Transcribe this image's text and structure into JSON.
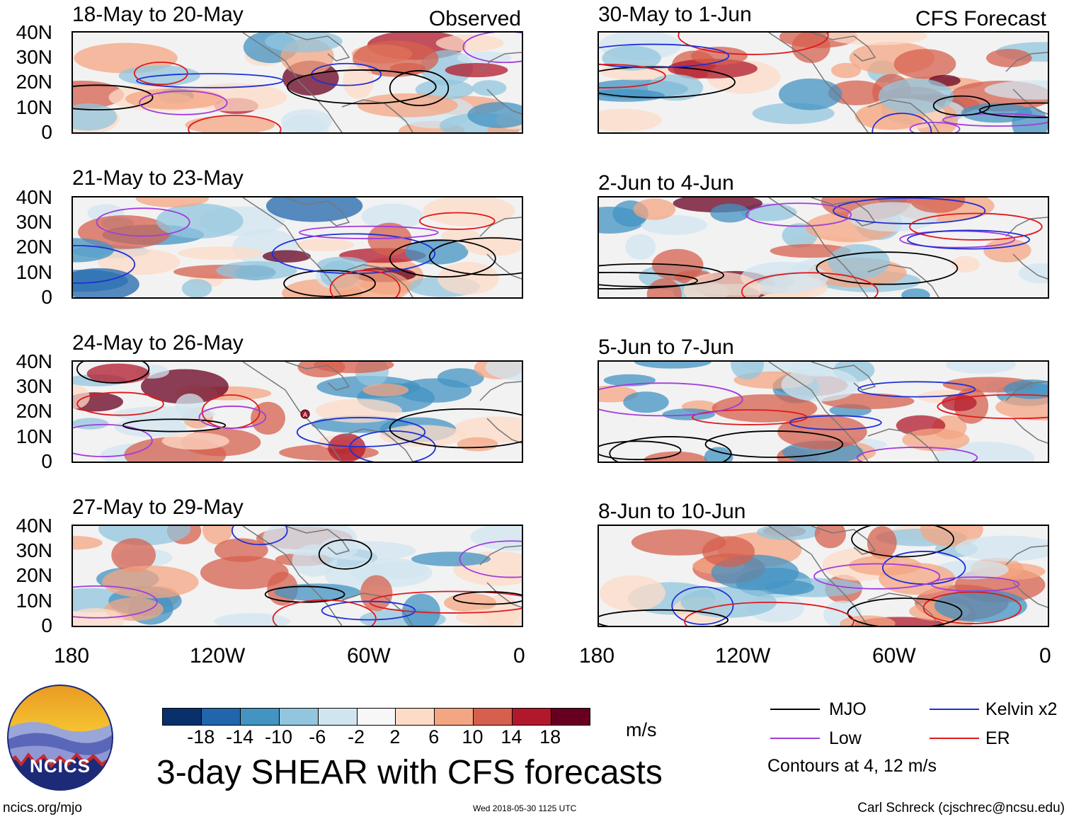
{
  "panels_left": [
    {
      "title": "18-May to 20-May",
      "corner": "Observed"
    },
    {
      "title": "21-May to 23-May",
      "corner": ""
    },
    {
      "title": "24-May to 26-May",
      "corner": ""
    },
    {
      "title": "27-May to 29-May",
      "corner": ""
    }
  ],
  "panels_right": [
    {
      "title": "30-May to 1-Jun",
      "corner": "CFS Forecast"
    },
    {
      "title": "2-Jun to 4-Jun",
      "corner": ""
    },
    {
      "title": "5-Jun to 7-Jun",
      "corner": ""
    },
    {
      "title": "8-Jun to 10-Jun",
      "corner": ""
    }
  ],
  "y_ticks": [
    "40N",
    "30N",
    "20N",
    "10N",
    "0"
  ],
  "x_ticks": [
    "180",
    "120W",
    "60W",
    "0"
  ],
  "colorbar": {
    "colors": [
      "#08306b",
      "#2166ac",
      "#4393c3",
      "#92c5de",
      "#d1e5f0",
      "#f7f7f7",
      "#fddbc7",
      "#f4a582",
      "#d6604d",
      "#b2182b",
      "#67001f"
    ],
    "labels": [
      "-18",
      "-14",
      "-10",
      "-6",
      "-2",
      "2",
      "6",
      "10",
      "14",
      "18"
    ],
    "units": "m/s"
  },
  "legend": {
    "items": [
      {
        "label": "MJO",
        "color": "#000000"
      },
      {
        "label": "Kelvin x2",
        "color": "#1f2fd6"
      },
      {
        "label": "Low",
        "color": "#a33bdc"
      },
      {
        "label": "ER",
        "color": "#e0191c"
      }
    ],
    "note": "Contours at 4, 12 m/s"
  },
  "main_title": "3-day SHEAR with CFS forecasts",
  "logo_text": "NCICS",
  "footer": {
    "left": "ncics.org/mjo",
    "center": "Wed 2018-05-30 1125 UTC",
    "right": "Carl Schreck (cjschrec@ncsu.edu)"
  },
  "storm_marker": "A"
}
